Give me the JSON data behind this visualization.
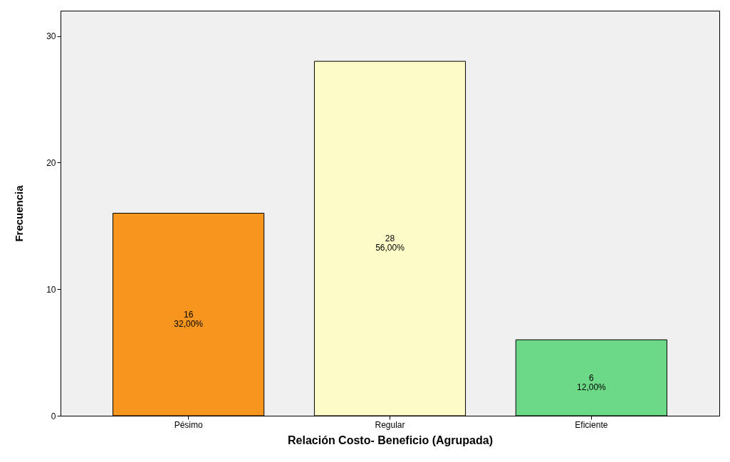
{
  "chart_data": {
    "type": "bar",
    "xlabel": "Relación Costo- Beneficio (Agrupada)",
    "ylabel": "Frecuencia",
    "categories": [
      "Pésimo",
      "Regular",
      "Eficiente"
    ],
    "values": [
      16,
      28,
      6
    ],
    "colors": [
      "#f7961e",
      "#fdfcc8",
      "#6cd987"
    ],
    "value_labels": [
      "16\n32,00%",
      "28\n56,00%",
      "6\n12,00%"
    ],
    "ylim": [
      0,
      32
    ],
    "yticks": [
      0,
      10,
      20,
      30
    ],
    "grid": false
  }
}
